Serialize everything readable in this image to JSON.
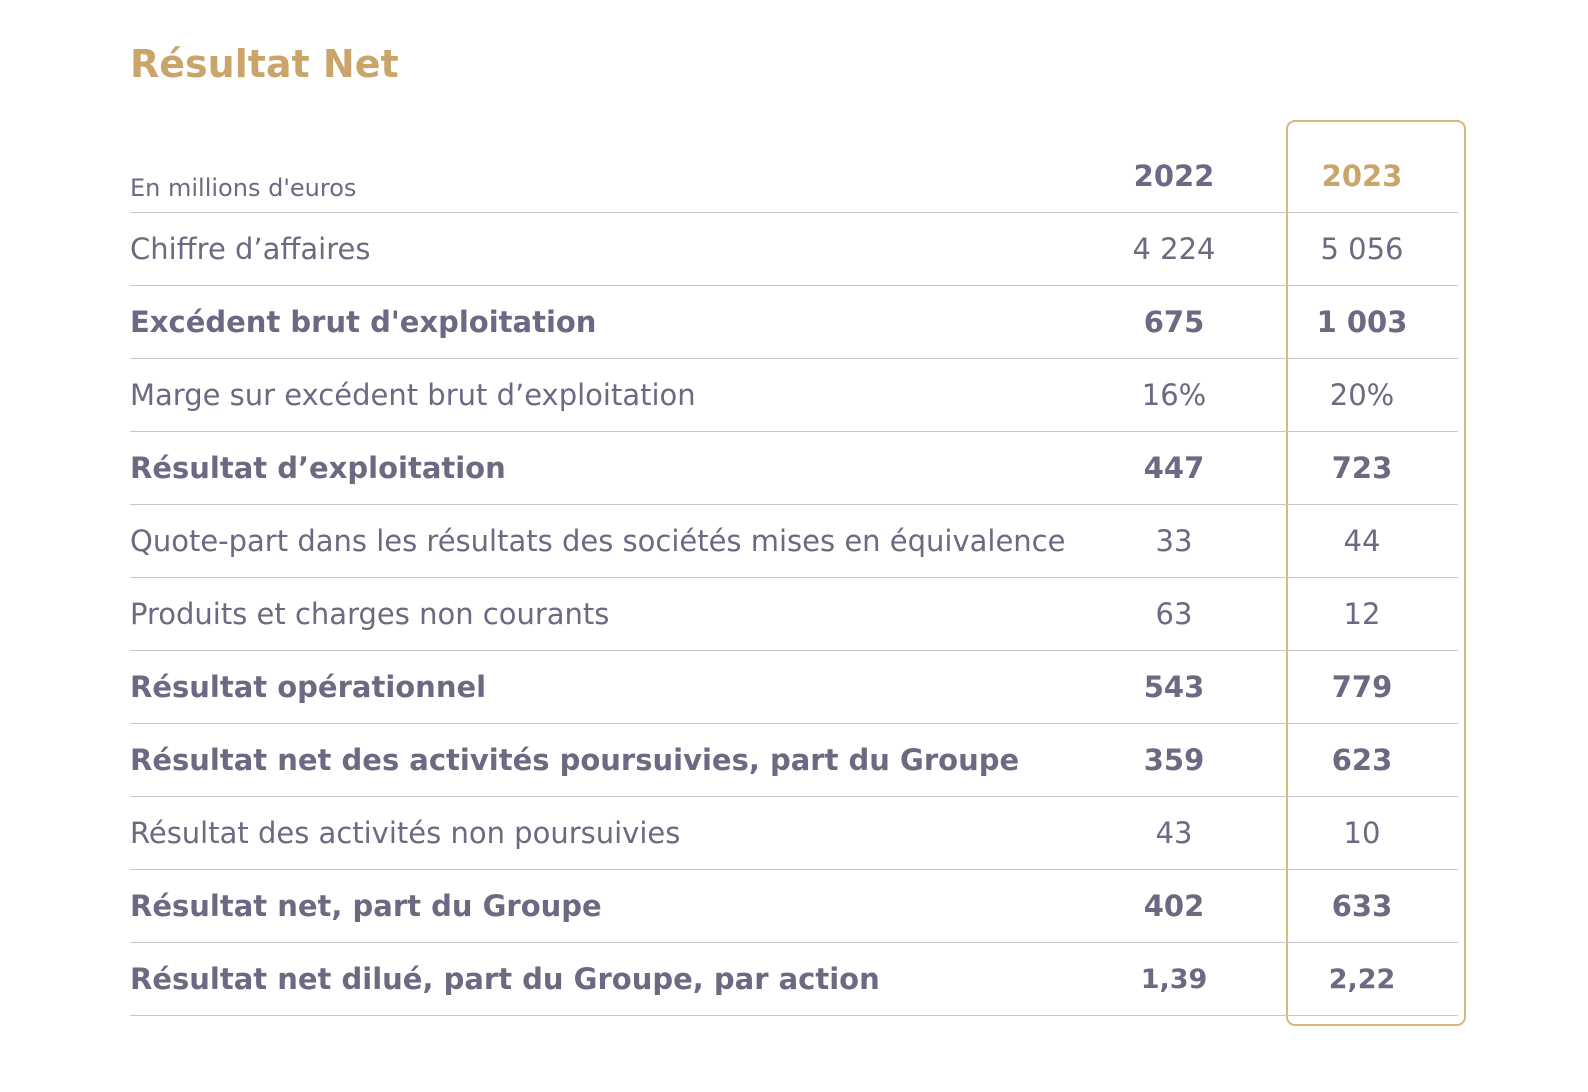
{
  "title": "Résultat Net",
  "header": {
    "unit_label": "En millions d'euros",
    "col_2022": "2022",
    "col_2023": "2023"
  },
  "rows": [
    {
      "label": "Chiffre d’affaires",
      "v2022": "4 224",
      "v2023": "5 056",
      "bold": false
    },
    {
      "label": "Excédent brut d'exploitation",
      "v2022": "675",
      "v2023": "1 003",
      "bold": true
    },
    {
      "label": "Marge sur excédent brut d’exploitation",
      "v2022": "16%",
      "v2023": "20%",
      "bold": false
    },
    {
      "label": "Résultat d’exploitation",
      "v2022": "447",
      "v2023": "723",
      "bold": true
    },
    {
      "label": "Quote-part dans les résultats des sociétés mises en équivalence",
      "v2022": "33",
      "v2023": "44",
      "bold": false
    },
    {
      "label": "Produits et charges non courants",
      "v2022": "63",
      "v2023": "12",
      "bold": false
    },
    {
      "label": "Résultat opérationnel",
      "v2022": "543",
      "v2023": "779",
      "bold": true
    },
    {
      "label": "Résultat net des activités poursuivies, part du Groupe",
      "v2022": "359",
      "v2023": "623",
      "bold": true
    },
    {
      "label": "Résultat des activités non poursuivies",
      "v2022": "43",
      "v2023": "10",
      "bold": false
    },
    {
      "label": "Résultat net, part du Groupe",
      "v2022": "402",
      "v2023": "633",
      "bold": true
    },
    {
      "label": "Résultat net dilué, part du Groupe, par action",
      "v2022": "1,39",
      "v2023": "2,22",
      "bold": true
    }
  ],
  "colors": {
    "accent": "#c9a56a",
    "text": "#6b6a82",
    "divider": "#c6c6cf"
  }
}
